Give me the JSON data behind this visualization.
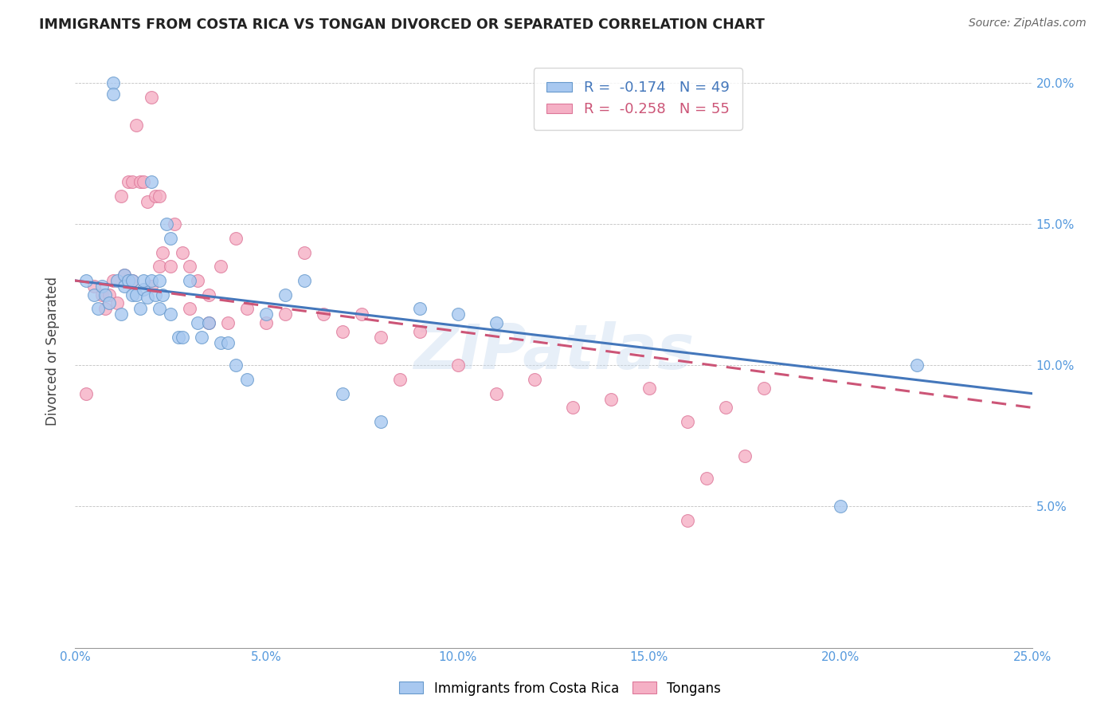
{
  "title": "IMMIGRANTS FROM COSTA RICA VS TONGAN DIVORCED OR SEPARATED CORRELATION CHART",
  "source": "Source: ZipAtlas.com",
  "ylabel": "Divorced or Separated",
  "xlim": [
    0.0,
    0.25
  ],
  "ylim": [
    0.0,
    0.21
  ],
  "xticks": [
    0.0,
    0.05,
    0.1,
    0.15,
    0.2,
    0.25
  ],
  "xticklabels": [
    "0.0%",
    "5.0%",
    "10.0%",
    "15.0%",
    "20.0%",
    "25.0%"
  ],
  "yticks": [
    0.0,
    0.05,
    0.1,
    0.15,
    0.2
  ],
  "blue_color": "#A8C8F0",
  "pink_color": "#F5B0C5",
  "blue_edge_color": "#6699CC",
  "pink_edge_color": "#DD7799",
  "blue_line_color": "#4477BB",
  "pink_line_color": "#CC5577",
  "watermark": "ZIPatlas",
  "blue_x": [
    0.003,
    0.005,
    0.006,
    0.007,
    0.008,
    0.009,
    0.01,
    0.01,
    0.011,
    0.012,
    0.013,
    0.013,
    0.014,
    0.015,
    0.015,
    0.016,
    0.017,
    0.018,
    0.018,
    0.019,
    0.02,
    0.02,
    0.021,
    0.022,
    0.022,
    0.023,
    0.024,
    0.025,
    0.025,
    0.027,
    0.028,
    0.03,
    0.032,
    0.033,
    0.035,
    0.038,
    0.04,
    0.042,
    0.045,
    0.05,
    0.055,
    0.06,
    0.07,
    0.08,
    0.09,
    0.1,
    0.11,
    0.2,
    0.22
  ],
  "blue_y": [
    0.13,
    0.125,
    0.12,
    0.128,
    0.125,
    0.122,
    0.2,
    0.196,
    0.13,
    0.118,
    0.132,
    0.128,
    0.13,
    0.125,
    0.13,
    0.125,
    0.12,
    0.127,
    0.13,
    0.124,
    0.13,
    0.165,
    0.125,
    0.13,
    0.12,
    0.125,
    0.15,
    0.118,
    0.145,
    0.11,
    0.11,
    0.13,
    0.115,
    0.11,
    0.115,
    0.108,
    0.108,
    0.1,
    0.095,
    0.118,
    0.125,
    0.13,
    0.09,
    0.08,
    0.12,
    0.118,
    0.115,
    0.05,
    0.1
  ],
  "pink_x": [
    0.003,
    0.005,
    0.007,
    0.008,
    0.009,
    0.01,
    0.011,
    0.012,
    0.013,
    0.014,
    0.015,
    0.015,
    0.016,
    0.017,
    0.018,
    0.019,
    0.02,
    0.02,
    0.021,
    0.022,
    0.022,
    0.023,
    0.025,
    0.026,
    0.028,
    0.03,
    0.03,
    0.032,
    0.035,
    0.035,
    0.038,
    0.04,
    0.042,
    0.045,
    0.05,
    0.055,
    0.06,
    0.065,
    0.07,
    0.075,
    0.08,
    0.085,
    0.09,
    0.1,
    0.11,
    0.12,
    0.13,
    0.14,
    0.15,
    0.16,
    0.165,
    0.17,
    0.175,
    0.18,
    0.16
  ],
  "pink_y": [
    0.09,
    0.128,
    0.125,
    0.12,
    0.125,
    0.13,
    0.122,
    0.16,
    0.132,
    0.165,
    0.165,
    0.13,
    0.185,
    0.165,
    0.165,
    0.158,
    0.195,
    0.128,
    0.16,
    0.16,
    0.135,
    0.14,
    0.135,
    0.15,
    0.14,
    0.12,
    0.135,
    0.13,
    0.115,
    0.125,
    0.135,
    0.115,
    0.145,
    0.12,
    0.115,
    0.118,
    0.14,
    0.118,
    0.112,
    0.118,
    0.11,
    0.095,
    0.112,
    0.1,
    0.09,
    0.095,
    0.085,
    0.088,
    0.092,
    0.08,
    0.06,
    0.085,
    0.068,
    0.092,
    0.045
  ],
  "blue_line_x0": 0.0,
  "blue_line_x1": 0.25,
  "blue_line_y0": 0.13,
  "blue_line_y1": 0.09,
  "pink_line_x0": 0.0,
  "pink_line_x1": 0.25,
  "pink_line_y0": 0.13,
  "pink_line_y1": 0.085
}
